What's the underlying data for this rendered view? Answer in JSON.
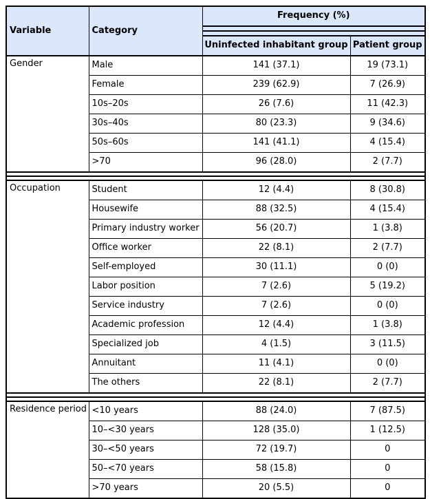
{
  "colors": {
    "header_bg": "#dbe8fc",
    "border": "#000000",
    "text": "#000000",
    "row_bg": "#ffffff"
  },
  "chart_data": {
    "type": "table",
    "column_group": {
      "label": "Frequency (%)"
    },
    "columns": [
      "Variable",
      "Category",
      "Uninfected inhabitant group",
      "Patient group"
    ],
    "sections": [
      {
        "variable": "Gender",
        "rows": [
          {
            "category": "Male",
            "uninfected": "141 (37.1)",
            "patient": "19 (73.1)"
          },
          {
            "category": "Female",
            "uninfected": "239 (62.9)",
            "patient": "7 (26.9)"
          },
          {
            "category": "10s–20s",
            "uninfected": "26 (7.6)",
            "patient": "11 (42.3)"
          },
          {
            "category": "30s–40s",
            "uninfected": "80 (23.3)",
            "patient": "9 (34.6)"
          },
          {
            "category": "50s–60s",
            "uninfected": "141 (41.1)",
            "patient": "4 (15.4)"
          },
          {
            "category": ">70",
            "uninfected": "96 (28.0)",
            "patient": "2 (7.7)"
          }
        ]
      },
      {
        "variable": "Occupation",
        "rows": [
          {
            "category": "Student",
            "uninfected": "12 (4.4)",
            "patient": "8 (30.8)"
          },
          {
            "category": "Housewife",
            "uninfected": "88 (32.5)",
            "patient": "4 (15.4)"
          },
          {
            "category": "Primary industry worker",
            "uninfected": "56 (20.7)",
            "patient": "1 (3.8)"
          },
          {
            "category": "Office worker",
            "uninfected": "22 (8.1)",
            "patient": "2 (7.7)"
          },
          {
            "category": "Self-employed",
            "uninfected": "30 (11.1)",
            "patient": "0 (0)"
          },
          {
            "category": "Labor position",
            "uninfected": "7 (2.6)",
            "patient": "5 (19.2)"
          },
          {
            "category": "Service industry",
            "uninfected": "7 (2.6)",
            "patient": "0 (0)"
          },
          {
            "category": "Academic profession",
            "uninfected": "12 (4.4)",
            "patient": "1 (3.8)"
          },
          {
            "category": "Specialized job",
            "uninfected": "4 (1.5)",
            "patient": "3 (11.5)"
          },
          {
            "category": "Annuitant",
            "uninfected": "11 (4.1)",
            "patient": "0 (0)"
          },
          {
            "category": "The others",
            "uninfected": "22 (8.1)",
            "patient": "2 (7.7)"
          }
        ]
      },
      {
        "variable": "Residence period",
        "rows": [
          {
            "category": "<10 years",
            "uninfected": "88 (24.0)",
            "patient": "7 (87.5)"
          },
          {
            "category": "10–<30 years",
            "uninfected": "128 (35.0)",
            "patient": "1 (12.5)"
          },
          {
            "category": "30–<50 years",
            "uninfected": "72 (19.7)",
            "patient": "0"
          },
          {
            "category": "50–<70 years",
            "uninfected": "58 (15.8)",
            "patient": "0"
          },
          {
            "category": ">70 years",
            "uninfected": "20 (5.5)",
            "patient": "0"
          }
        ]
      }
    ]
  }
}
